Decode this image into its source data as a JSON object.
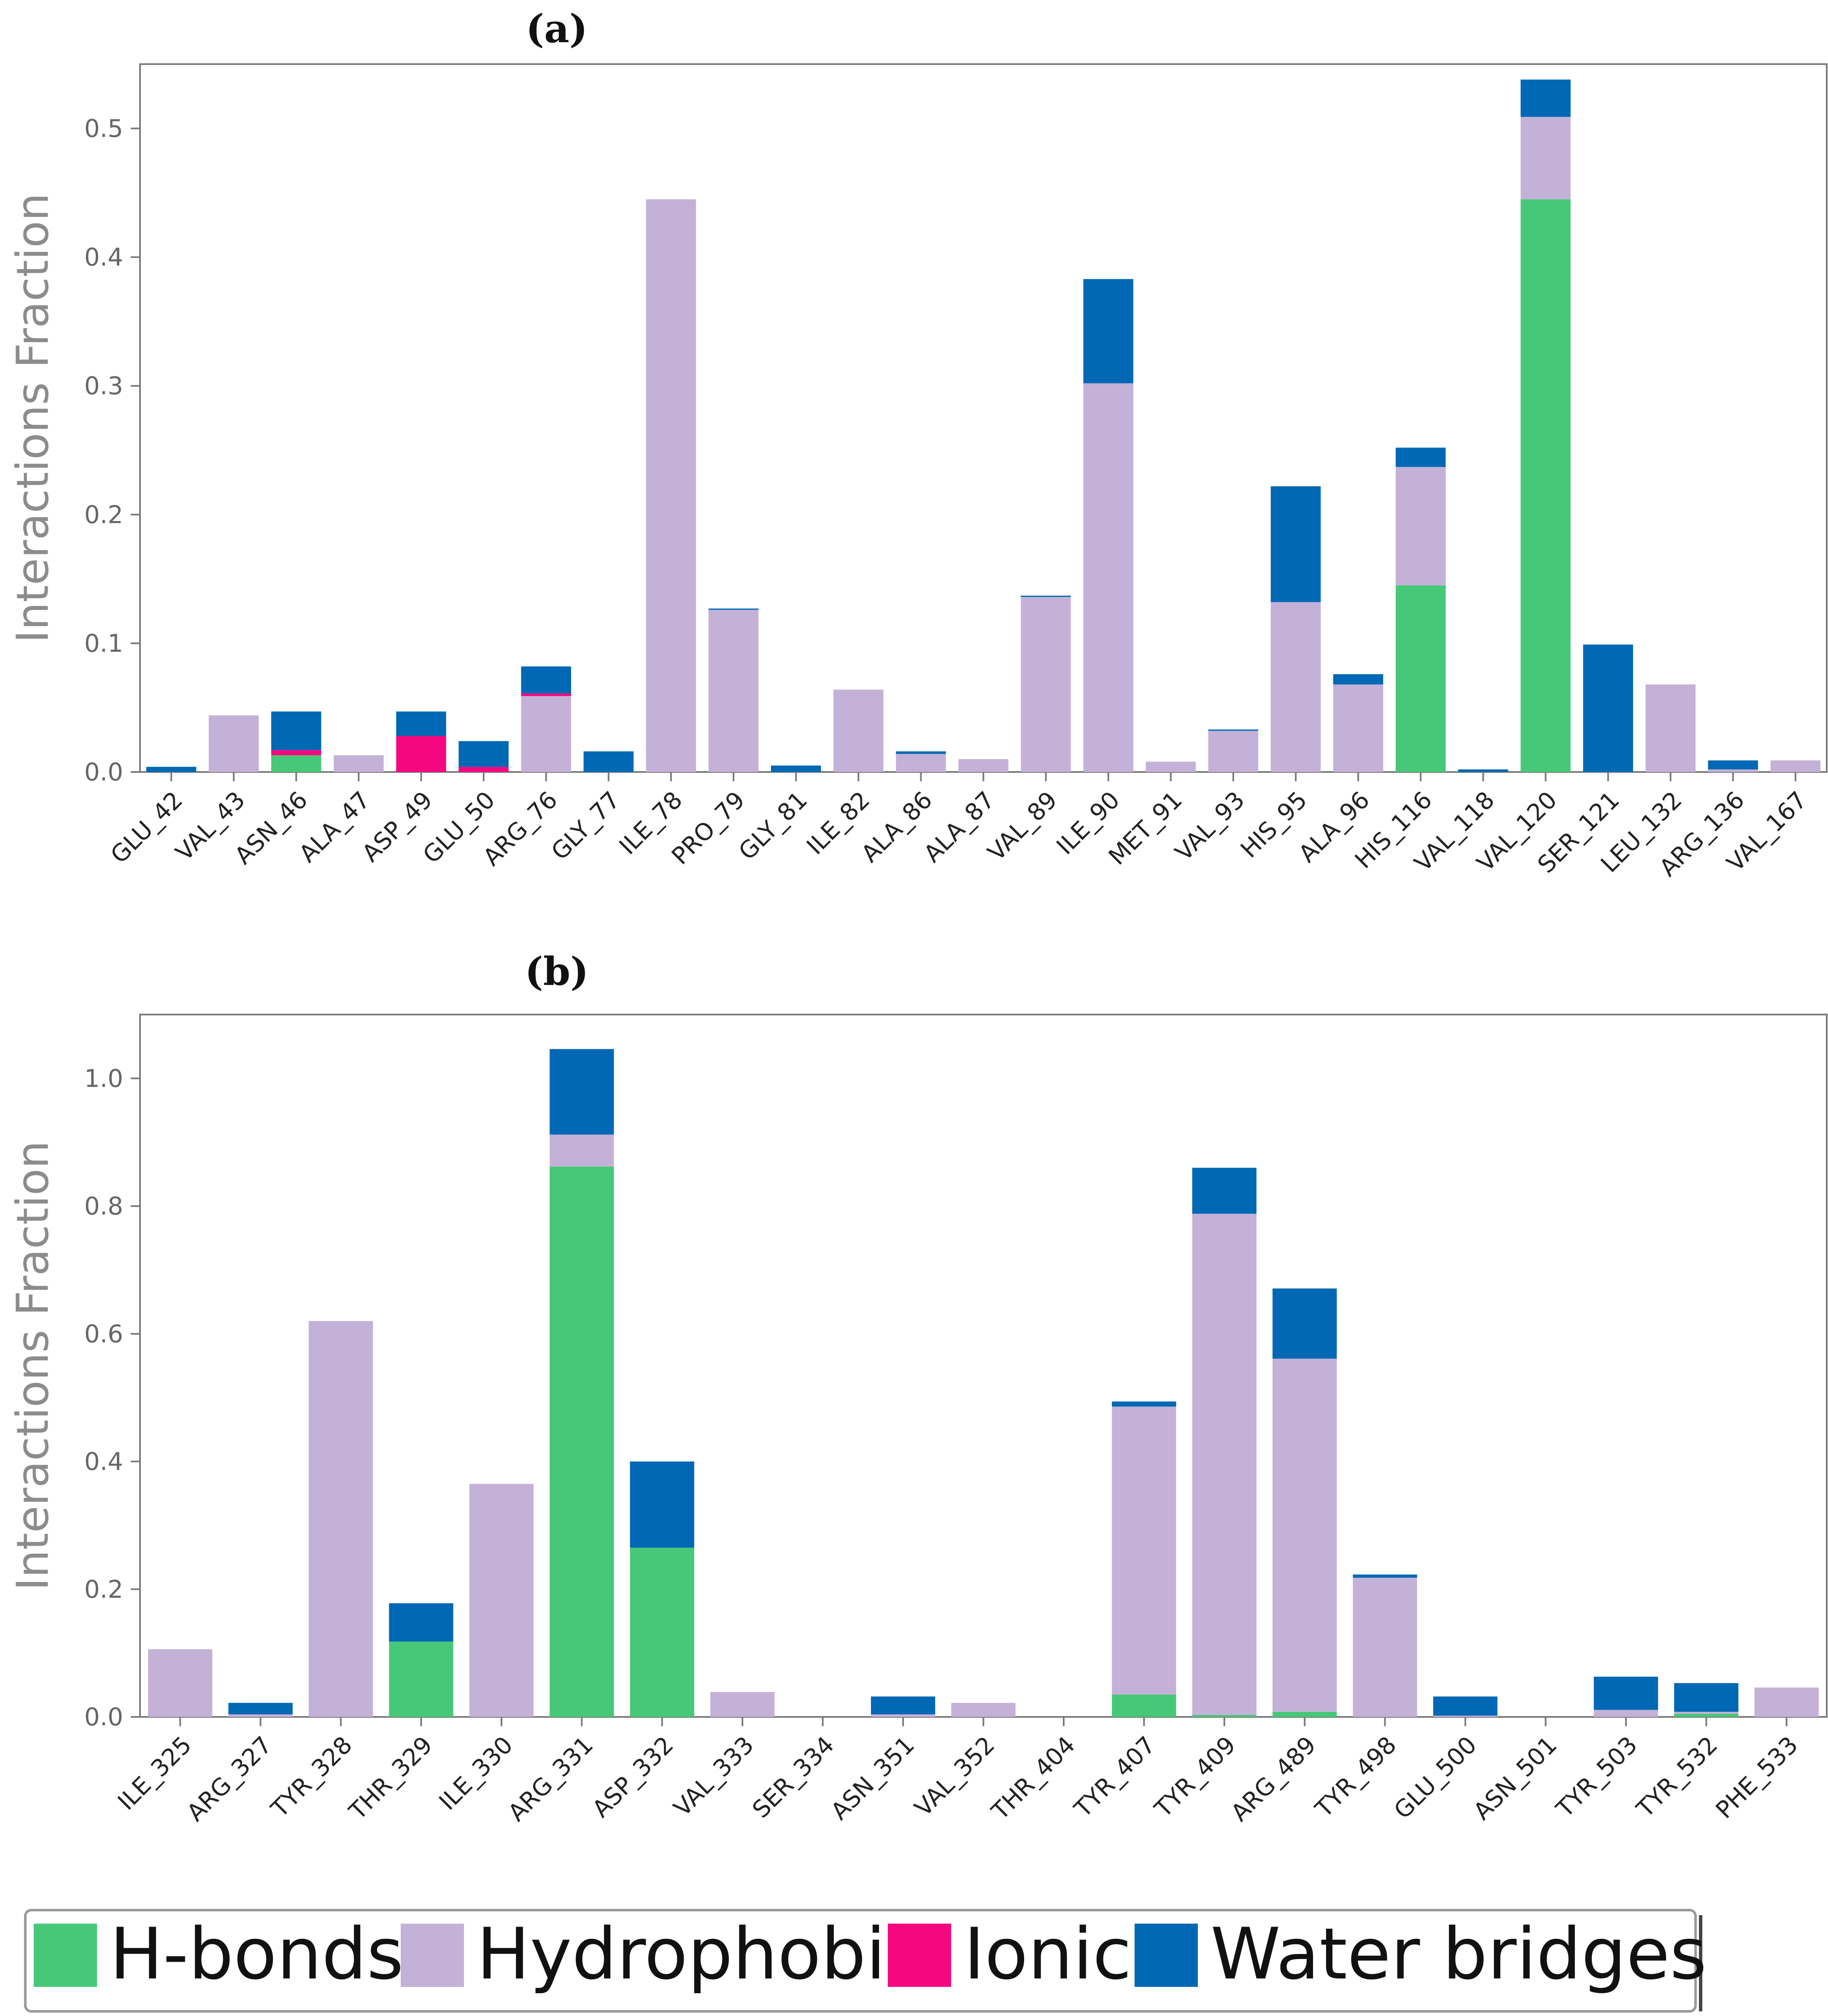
{
  "colors": {
    "hbonds": "#47c878",
    "hydrophobic": "#c4b1d8",
    "ionic": "#f5087f",
    "water": "#0068b4",
    "axis": "#7a7a7a",
    "tick_text": "#666666",
    "ylabel_text": "#8c8c8c"
  },
  "legend": {
    "items": [
      {
        "key": "hbonds",
        "label": "H-bonds"
      },
      {
        "key": "hydrophobic",
        "label": "Hydrophobic"
      },
      {
        "key": "ionic",
        "label": "Ionic"
      },
      {
        "key": "water",
        "label": "Water bridges"
      }
    ]
  },
  "chart_data": [
    {
      "panel_label": "(a)",
      "type": "bar",
      "stacked": true,
      "title": "",
      "xlabel": "",
      "ylabel": "Interactions Fraction",
      "ylim": [
        0,
        0.55
      ],
      "yticks": [
        "0.0",
        "0.1",
        "0.2",
        "0.3",
        "0.4",
        "0.5"
      ],
      "categories": [
        "GLU_42",
        "VAL_43",
        "ASN_46",
        "ALA_47",
        "ASP_49",
        "GLU_50",
        "ARG_76",
        "GLY_77",
        "ILE_78",
        "PRO_79",
        "GLY_81",
        "ILE_82",
        "ALA_86",
        "ALA_87",
        "VAL_89",
        "ILE_90",
        "MET_91",
        "VAL_93",
        "HIS_95",
        "ALA_96",
        "HIS_116",
        "VAL_118",
        "VAL_120",
        "SER_121",
        "LEU_132",
        "ARG_136",
        "VAL_167"
      ],
      "series": [
        {
          "name": "H-bonds",
          "values": [
            0,
            0,
            0.013,
            0,
            0,
            0,
            0,
            0,
            0,
            0,
            0,
            0,
            0,
            0,
            0,
            0,
            0,
            0,
            0,
            0,
            0.145,
            0,
            0.445,
            0,
            0,
            0,
            0
          ]
        },
        {
          "name": "Hydrophobic",
          "values": [
            0,
            0.044,
            0,
            0.013,
            0,
            0,
            0.059,
            0,
            0.445,
            0.126,
            0,
            0.064,
            0.014,
            0.01,
            0.136,
            0.302,
            0.008,
            0.032,
            0.132,
            0.068,
            0.092,
            0,
            0.064,
            0,
            0.068,
            0.002,
            0.009
          ]
        },
        {
          "name": "Ionic",
          "values": [
            0,
            0,
            0.004,
            0,
            0.028,
            0.004,
            0.002,
            0,
            0,
            0,
            0,
            0,
            0,
            0,
            0,
            0,
            0,
            0,
            0,
            0,
            0,
            0,
            0,
            0,
            0,
            0,
            0
          ]
        },
        {
          "name": "Water bridges",
          "values": [
            0.004,
            0,
            0.03,
            0,
            0.019,
            0.02,
            0.021,
            0.016,
            0,
            0.001,
            0.005,
            0,
            0.002,
            0,
            0.001,
            0.081,
            0,
            0.001,
            0.09,
            0.008,
            0.015,
            0.002,
            0.029,
            0.099,
            0,
            0.007,
            0
          ]
        }
      ]
    },
    {
      "panel_label": "(b)",
      "type": "bar",
      "stacked": true,
      "title": "",
      "xlabel": "",
      "ylabel": "Interactions Fraction",
      "ylim": [
        0,
        1.1
      ],
      "yticks": [
        "0.0",
        "0.2",
        "0.4",
        "0.6",
        "0.8",
        "1.0"
      ],
      "categories": [
        "ILE_325",
        "ARG_327",
        "TYR_328",
        "THR_329",
        "ILE_330",
        "ARG_331",
        "ASP_332",
        "VAL_333",
        "SER_334",
        "ASN_351",
        "VAL_352",
        "THR_404",
        "TYR_407",
        "TYR_409",
        "ARG_489",
        "TYR_498",
        "GLU_500",
        "ASN_501",
        "TYR_503",
        "TYR_532",
        "PHE_533"
      ],
      "series": [
        {
          "name": "H-bonds",
          "values": [
            0,
            0,
            0,
            0.118,
            0,
            0.862,
            0.265,
            0,
            0,
            0,
            0,
            0,
            0.035,
            0.003,
            0.008,
            0,
            0,
            0,
            0,
            0.005,
            0
          ]
        },
        {
          "name": "Hydrophobic",
          "values": [
            0.106,
            0.004,
            0.62,
            0,
            0.365,
            0.05,
            0,
            0.039,
            0,
            0.004,
            0.022,
            0,
            0.451,
            0.785,
            0.553,
            0.218,
            0.002,
            0,
            0.011,
            0.003,
            0.046
          ]
        },
        {
          "name": "Ionic",
          "values": [
            0,
            0,
            0,
            0,
            0,
            0,
            0,
            0,
            0,
            0,
            0,
            0,
            0,
            0,
            0,
            0,
            0,
            0,
            0,
            0,
            0
          ]
        },
        {
          "name": "Water bridges",
          "values": [
            0,
            0.018,
            0,
            0.06,
            0,
            0.134,
            0.135,
            0,
            0,
            0.028,
            0,
            0,
            0.008,
            0.072,
            0.11,
            0.005,
            0.03,
            0,
            0.052,
            0.045,
            0
          ]
        }
      ]
    }
  ]
}
